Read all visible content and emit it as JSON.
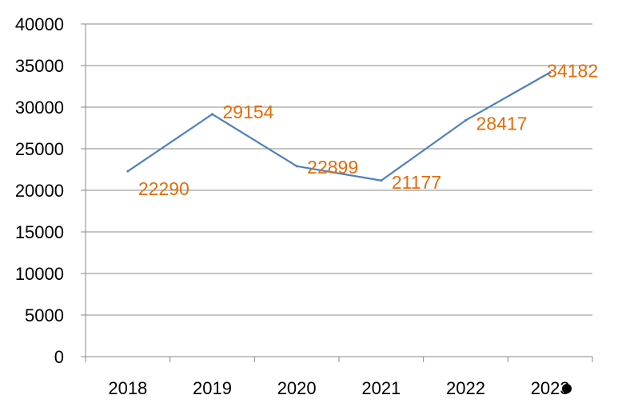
{
  "chart_data": {
    "type": "line",
    "categories": [
      "2018",
      "2019",
      "2020",
      "2021",
      "2022",
      "2023"
    ],
    "values": [
      22290,
      29154,
      22899,
      21177,
      28417,
      34182
    ],
    "data_labels": [
      "22290",
      "29154",
      "22899",
      "21177",
      "28417",
      "34182"
    ],
    "title": "",
    "xlabel": "",
    "ylabel": "",
    "ylim": [
      0,
      40000
    ],
    "yticks": [
      0,
      5000,
      10000,
      15000,
      20000,
      25000,
      30000,
      35000,
      40000
    ],
    "grid": true,
    "legend": "none",
    "colors": {
      "line": "#4f81bd",
      "label": "#e46c0a",
      "grid": "#898989"
    }
  }
}
